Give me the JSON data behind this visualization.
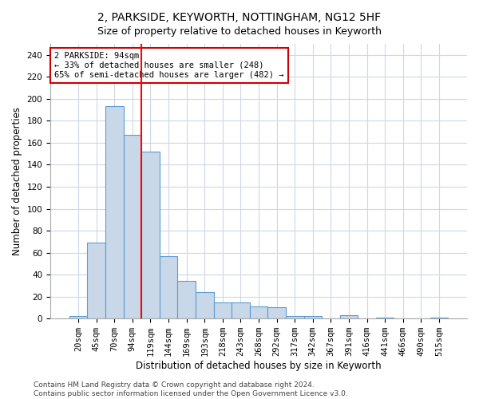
{
  "title": "2, PARKSIDE, KEYWORTH, NOTTINGHAM, NG12 5HF",
  "subtitle": "Size of property relative to detached houses in Keyworth",
  "xlabel": "Distribution of detached houses by size in Keyworth",
  "ylabel": "Number of detached properties",
  "categories": [
    "20sqm",
    "45sqm",
    "70sqm",
    "94sqm",
    "119sqm",
    "144sqm",
    "169sqm",
    "193sqm",
    "218sqm",
    "243sqm",
    "268sqm",
    "292sqm",
    "317sqm",
    "342sqm",
    "367sqm",
    "391sqm",
    "416sqm",
    "441sqm",
    "466sqm",
    "490sqm",
    "515sqm"
  ],
  "values": [
    2,
    69,
    193,
    167,
    152,
    57,
    34,
    24,
    15,
    15,
    11,
    10,
    2,
    2,
    0,
    3,
    0,
    1,
    0,
    0,
    1
  ],
  "bar_color": "#c8d8e8",
  "bar_edge_color": "#5b9bd5",
  "bar_edge_width": 0.8,
  "red_line_index": 3,
  "annotation_text": "2 PARKSIDE: 94sqm\n← 33% of detached houses are smaller (248)\n65% of semi-detached houses are larger (482) →",
  "annotation_box_color": "#ffffff",
  "annotation_box_edge_color": "#cc0000",
  "footer_line1": "Contains HM Land Registry data © Crown copyright and database right 2024.",
  "footer_line2": "Contains public sector information licensed under the Open Government Licence v3.0.",
  "ylim": [
    0,
    250
  ],
  "yticks": [
    0,
    20,
    40,
    60,
    80,
    100,
    120,
    140,
    160,
    180,
    200,
    220,
    240
  ],
  "bg_color": "#ffffff",
  "grid_color": "#ccd8e8",
  "title_fontsize": 10,
  "subtitle_fontsize": 9,
  "tick_fontsize": 7.5,
  "ylabel_fontsize": 8.5,
  "xlabel_fontsize": 8.5,
  "annotation_fontsize": 7.5,
  "footer_fontsize": 6.5
}
